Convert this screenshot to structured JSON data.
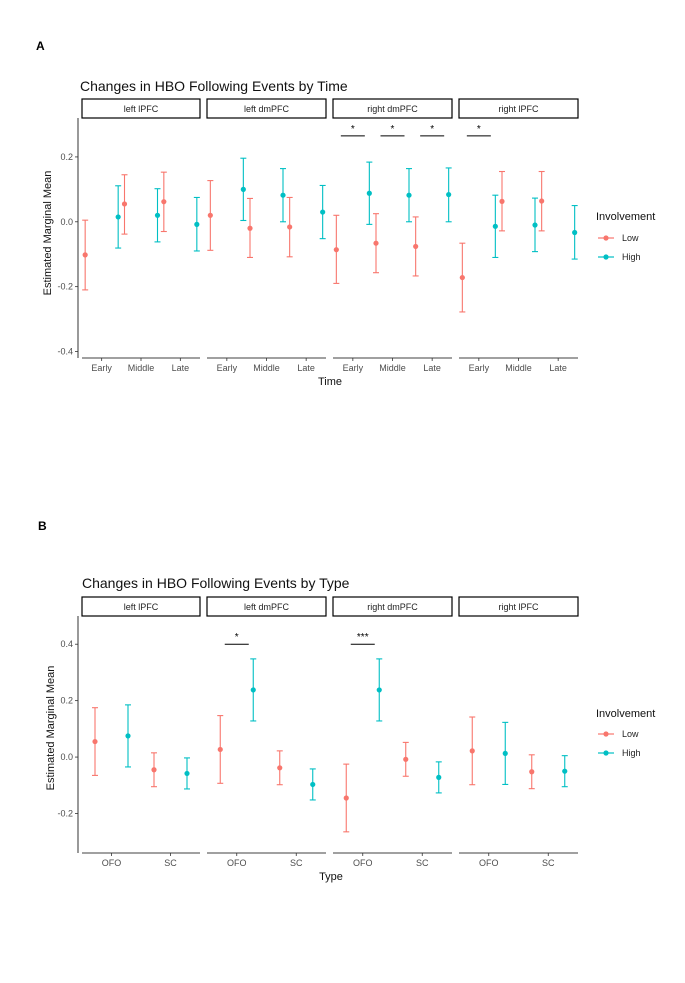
{
  "chart_data": [
    {
      "panel_label": "A",
      "type": "scatter",
      "title": "Changes in HBO Following Events by Time",
      "xlabel": "Time",
      "ylabel": "Estimated Marginal Mean",
      "ylim": [
        -0.42,
        0.32
      ],
      "yticks": [
        "0.2",
        "0.0",
        "-0.2",
        "-0.4"
      ],
      "ytick_values": [
        0.2,
        0.0,
        -0.2,
        -0.4
      ],
      "categories": [
        "Early",
        "Middle",
        "Late"
      ],
      "facets": [
        "left lPFC",
        "left dmPFC",
        "right dmPFC",
        "right lPFC"
      ],
      "legend_title": "Involvement",
      "legend": [
        {
          "name": "Low",
          "color": "#F8766D"
        },
        {
          "name": "High",
          "color": "#00BFC4"
        }
      ],
      "series": [
        {
          "name": "Low",
          "color": "#F8766D",
          "values": [
            [
              {
                "y": -0.102,
                "lo": -0.21,
                "hi": 0.005
              },
              {
                "y": 0.055,
                "lo": -0.038,
                "hi": 0.145
              },
              {
                "y": 0.062,
                "lo": -0.03,
                "hi": 0.153
              }
            ],
            [
              {
                "y": 0.02,
                "lo": -0.088,
                "hi": 0.127
              },
              {
                "y": -0.02,
                "lo": -0.11,
                "hi": 0.072
              },
              {
                "y": -0.016,
                "lo": -0.108,
                "hi": 0.075
              }
            ],
            [
              {
                "y": -0.086,
                "lo": -0.19,
                "hi": 0.02
              },
              {
                "y": -0.066,
                "lo": -0.157,
                "hi": 0.025
              },
              {
                "y": -0.076,
                "lo": -0.167,
                "hi": 0.015
              }
            ],
            [
              {
                "y": -0.172,
                "lo": -0.278,
                "hi": -0.066
              },
              {
                "y": 0.063,
                "lo": -0.028,
                "hi": 0.155
              },
              {
                "y": 0.064,
                "lo": -0.028,
                "hi": 0.155
              }
            ]
          ]
        },
        {
          "name": "High",
          "color": "#00BFC4",
          "values": [
            [
              {
                "y": 0.015,
                "lo": -0.081,
                "hi": 0.111
              },
              {
                "y": 0.02,
                "lo": -0.062,
                "hi": 0.102
              },
              {
                "y": -0.008,
                "lo": -0.09,
                "hi": 0.075
              }
            ],
            [
              {
                "y": 0.1,
                "lo": 0.004,
                "hi": 0.196
              },
              {
                "y": 0.082,
                "lo": 0.0,
                "hi": 0.164
              },
              {
                "y": 0.03,
                "lo": -0.052,
                "hi": 0.112
              }
            ],
            [
              {
                "y": 0.088,
                "lo": -0.008,
                "hi": 0.184
              },
              {
                "y": 0.082,
                "lo": 0.0,
                "hi": 0.164
              },
              {
                "y": 0.084,
                "lo": 0.0,
                "hi": 0.166
              }
            ],
            [
              {
                "y": -0.014,
                "lo": -0.11,
                "hi": 0.082
              },
              {
                "y": -0.01,
                "lo": -0.092,
                "hi": 0.073
              },
              {
                "y": -0.033,
                "lo": -0.115,
                "hi": 0.05
              }
            ]
          ]
        }
      ],
      "annotations": [
        {
          "facet": 2,
          "category": 0,
          "label": "*",
          "y": 0.265
        },
        {
          "facet": 2,
          "category": 1,
          "label": "*",
          "y": 0.265
        },
        {
          "facet": 2,
          "category": 2,
          "label": "*",
          "y": 0.265
        },
        {
          "facet": 3,
          "category": 0,
          "label": "*",
          "y": 0.265
        }
      ]
    },
    {
      "panel_label": "B",
      "type": "scatter",
      "title": "Changes in HBO Following Events by Type",
      "xlabel": "Type",
      "ylabel": "Estimated Marginal Mean",
      "ylim": [
        -0.34,
        0.5
      ],
      "yticks": [
        "0.4",
        "0.2",
        "0.0",
        "-0.2"
      ],
      "ytick_values": [
        0.4,
        0.2,
        0.0,
        -0.2
      ],
      "categories": [
        "OFO",
        "SC"
      ],
      "facets": [
        "left lPFC",
        "left dmPFC",
        "right dmPFC",
        "right lPFC"
      ],
      "legend_title": "Involvement",
      "legend": [
        {
          "name": "Low",
          "color": "#F8766D"
        },
        {
          "name": "High",
          "color": "#00BFC4"
        }
      ],
      "series": [
        {
          "name": "Low",
          "color": "#F8766D",
          "values": [
            [
              {
                "y": 0.055,
                "lo": -0.065,
                "hi": 0.175
              },
              {
                "y": -0.045,
                "lo": -0.105,
                "hi": 0.015
              }
            ],
            [
              {
                "y": 0.027,
                "lo": -0.093,
                "hi": 0.147
              },
              {
                "y": -0.038,
                "lo": -0.098,
                "hi": 0.022
              }
            ],
            [
              {
                "y": -0.145,
                "lo": -0.265,
                "hi": -0.025
              },
              {
                "y": -0.008,
                "lo": -0.068,
                "hi": 0.052
              }
            ],
            [
              {
                "y": 0.022,
                "lo": -0.098,
                "hi": 0.142
              },
              {
                "y": -0.052,
                "lo": -0.112,
                "hi": 0.008
              }
            ]
          ]
        },
        {
          "name": "High",
          "color": "#00BFC4",
          "values": [
            [
              {
                "y": 0.075,
                "lo": -0.035,
                "hi": 0.185
              },
              {
                "y": -0.058,
                "lo": -0.113,
                "hi": -0.003
              }
            ],
            [
              {
                "y": 0.238,
                "lo": 0.128,
                "hi": 0.348
              },
              {
                "y": -0.097,
                "lo": -0.152,
                "hi": -0.042
              }
            ],
            [
              {
                "y": 0.238,
                "lo": 0.128,
                "hi": 0.348
              },
              {
                "y": -0.072,
                "lo": -0.127,
                "hi": -0.017
              }
            ],
            [
              {
                "y": 0.013,
                "lo": -0.097,
                "hi": 0.123
              },
              {
                "y": -0.05,
                "lo": -0.105,
                "hi": 0.005
              }
            ]
          ]
        }
      ],
      "annotations": [
        {
          "facet": 1,
          "category": 0,
          "label": "*",
          "y": 0.4
        },
        {
          "facet": 2,
          "category": 0,
          "label": "***",
          "y": 0.4
        }
      ]
    }
  ]
}
